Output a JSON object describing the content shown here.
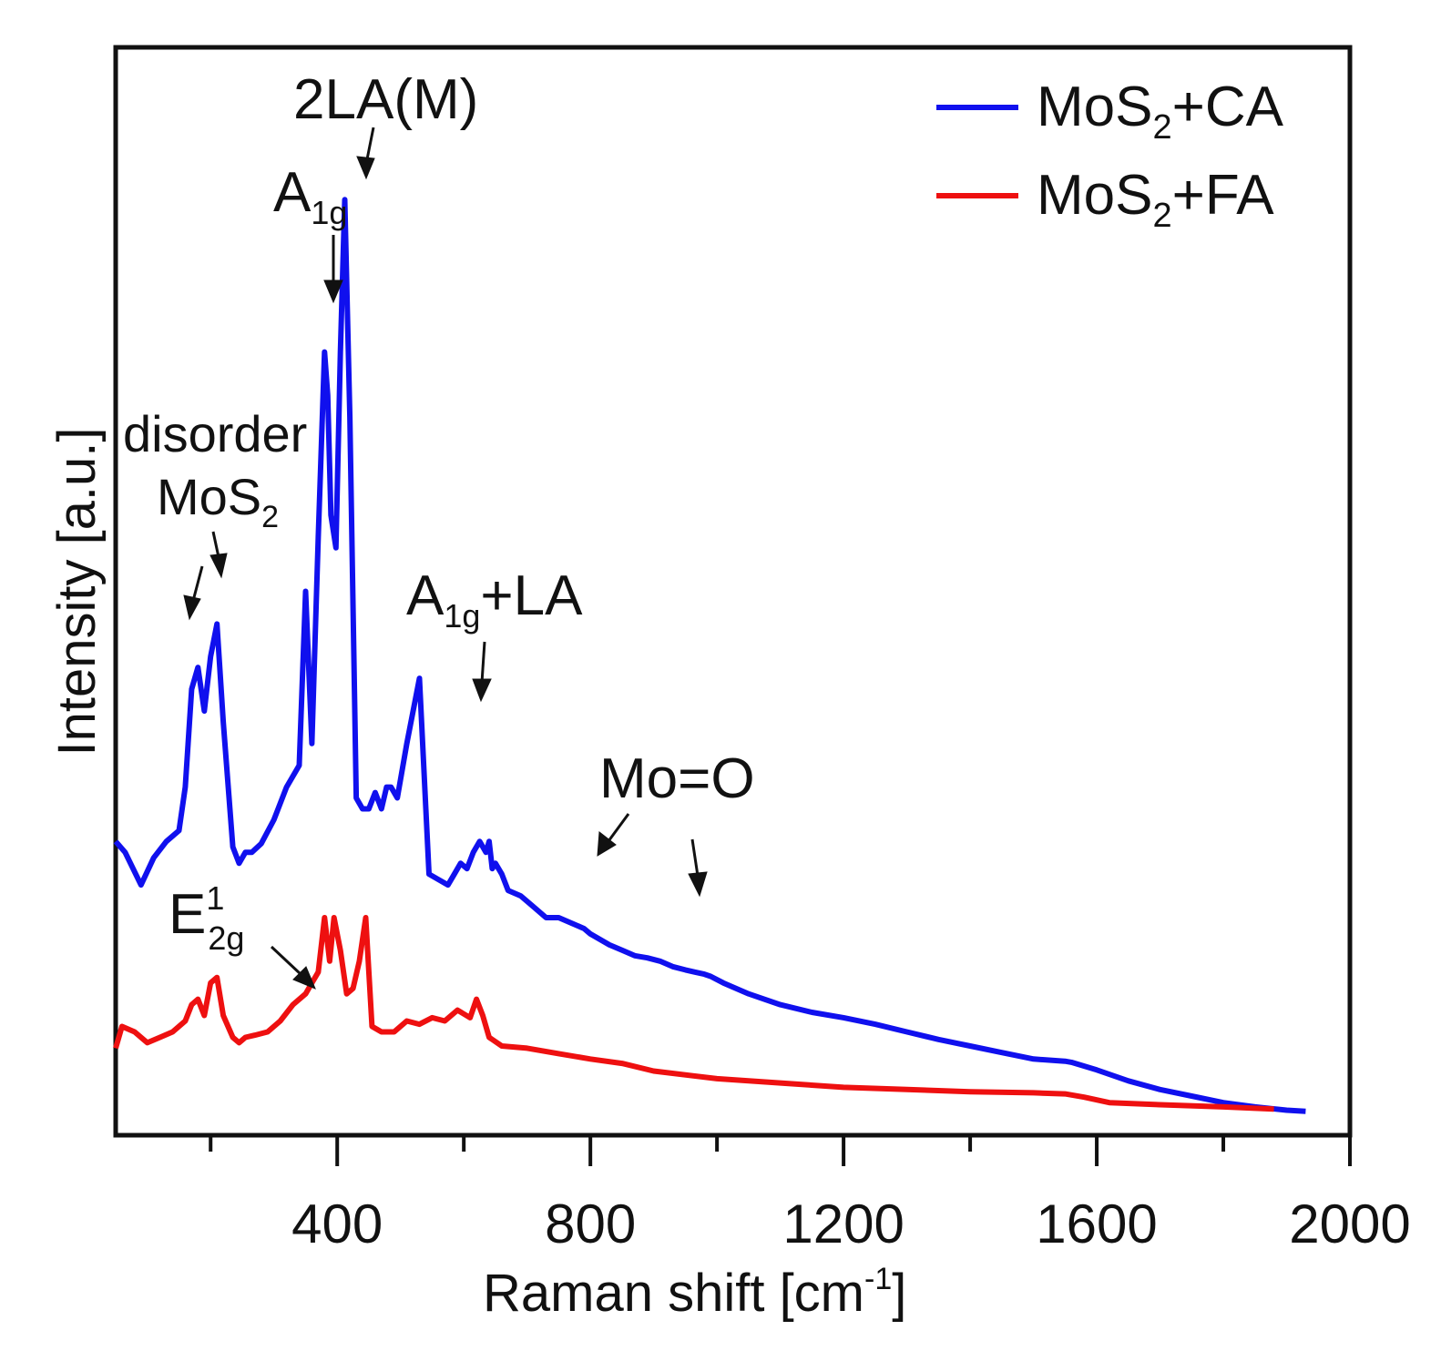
{
  "chart_data": {
    "type": "line",
    "xlabel_main": "Raman shift [cm",
    "xlabel_sup": "-1",
    "xlabel_end": "]",
    "ylabel": "Intensity [a.u.]",
    "xlim": [
      50,
      2000
    ],
    "x_ticks": [
      400,
      800,
      1200,
      1600,
      2000
    ],
    "x_minor_ticks": [
      200,
      600,
      1000,
      1400,
      1800
    ],
    "ylim": [
      0,
      100
    ],
    "legend_position": "top-right",
    "series": [
      {
        "name_main": "MoS",
        "name_sub": "2",
        "name_end": "+CA",
        "color": "#1010ee",
        "x": [
          50,
          65,
          90,
          110,
          130,
          150,
          160,
          170,
          180,
          190,
          200,
          210,
          220,
          235,
          245,
          255,
          265,
          280,
          300,
          320,
          340,
          350,
          360,
          370,
          380,
          385,
          390,
          398,
          405,
          412,
          420,
          430,
          440,
          450,
          460,
          470,
          478,
          485,
          495,
          510,
          530,
          545,
          560,
          575,
          585,
          595,
          605,
          615,
          625,
          635,
          640,
          645,
          650,
          660,
          670,
          690,
          710,
          730,
          750,
          770,
          790,
          800,
          815,
          830,
          850,
          870,
          890,
          910,
          930,
          950,
          965,
          980,
          990,
          1010,
          1050,
          1100,
          1150,
          1200,
          1250,
          1300,
          1350,
          1400,
          1450,
          1500,
          1550,
          1560,
          1600,
          1650,
          1700,
          1750,
          1800,
          1850,
          1900,
          1930
        ],
        "y": [
          27,
          26,
          23,
          25.5,
          27,
          28,
          32,
          41,
          43,
          39,
          44,
          47,
          38,
          26.5,
          25,
          26,
          26,
          26.8,
          29,
          32,
          34,
          50,
          36,
          55,
          72,
          68,
          57,
          54,
          72,
          86,
          66,
          31,
          30,
          30,
          31.5,
          30,
          32,
          32,
          31,
          36,
          42,
          24,
          23.5,
          23,
          24,
          25,
          24.5,
          26,
          27,
          26,
          27,
          24.5,
          25,
          24,
          22.5,
          22,
          21,
          20,
          20,
          19.5,
          19,
          18.5,
          18,
          17.5,
          17,
          16.5,
          16.3,
          16,
          15.5,
          15.2,
          15,
          14.8,
          14.6,
          14,
          13,
          12,
          11.3,
          10.8,
          10.2,
          9.5,
          8.8,
          8.2,
          7.6,
          7.0,
          6.8,
          6.7,
          6.0,
          5.0,
          4.2,
          3.6,
          3.0,
          2.6,
          2.3,
          2.2
        ]
      },
      {
        "name_main": "MoS",
        "name_sub": "2",
        "name_end": "+FA",
        "color": "#ee1010",
        "x": [
          50,
          60,
          80,
          100,
          120,
          140,
          160,
          170,
          180,
          190,
          200,
          210,
          220,
          235,
          245,
          255,
          270,
          290,
          310,
          330,
          350,
          360,
          370,
          380,
          388,
          395,
          405,
          415,
          425,
          435,
          445,
          455,
          470,
          490,
          510,
          530,
          550,
          570,
          590,
          610,
          620,
          630,
          640,
          645,
          660,
          700,
          750,
          800,
          850,
          900,
          1000,
          1100,
          1200,
          1300,
          1400,
          1500,
          1550,
          1580,
          1620,
          1700,
          1800,
          1880
        ],
        "y": [
          8,
          10,
          9.5,
          8.5,
          9,
          9.5,
          10.5,
          12,
          12.5,
          11,
          14,
          14.5,
          11,
          9,
          8.5,
          9,
          9.2,
          9.5,
          10.5,
          12,
          13,
          14,
          15,
          20,
          16,
          20,
          17,
          13,
          13.5,
          16,
          20,
          10,
          9.5,
          9.5,
          10.5,
          10.2,
          10.8,
          10.5,
          11.5,
          10.8,
          12.5,
          11,
          9,
          8.8,
          8.2,
          8.0,
          7.5,
          7.0,
          6.6,
          5.9,
          5.2,
          4.8,
          4.4,
          4.2,
          4.0,
          3.9,
          3.8,
          3.5,
          3.0,
          2.8,
          2.6,
          2.4
        ]
      }
    ],
    "annotations": [
      {
        "id": "2la",
        "main": "2LA(M)",
        "sub": "",
        "end": ""
      },
      {
        "id": "a1g",
        "main": "A",
        "sub": "1g",
        "end": ""
      },
      {
        "id": "disorder",
        "main": "disorder",
        "sub": "",
        "end": ""
      },
      {
        "id": "mos2",
        "main": "MoS",
        "sub": "2",
        "end": ""
      },
      {
        "id": "a1gla",
        "main": "A",
        "sub": "1g",
        "end": "+LA"
      },
      {
        "id": "moo",
        "main": "Mo=O",
        "sub": "",
        "end": ""
      },
      {
        "id": "e2g_main",
        "main": "E",
        "sup": "1",
        "sub": "2g"
      }
    ]
  }
}
